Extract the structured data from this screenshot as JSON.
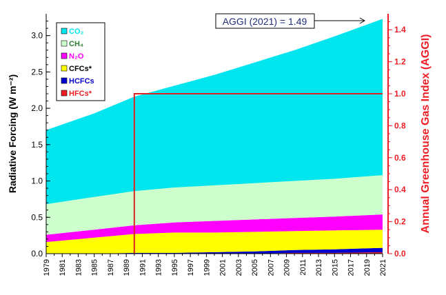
{
  "chart_data": {
    "type": "area",
    "stacked": true,
    "ylabel_left": "Radiative Forcing (W m⁻²)",
    "ylabel_right": "Annual Greenhouse Gas Index (AGGI)",
    "ylim_left": [
      0,
      3.3
    ],
    "ylim_right": [
      0,
      1.5
    ],
    "yticks_left": [
      "0.0",
      "0.5",
      "1.0",
      "1.5",
      "2.0",
      "2.5",
      "3.0"
    ],
    "yticks_right": [
      "0.0",
      "0.2",
      "0.4",
      "0.6",
      "0.8",
      "1.0",
      "1.2",
      "1.4"
    ],
    "x_tick_labels": [
      "1979",
      "1981",
      "1983",
      "1985",
      "1987",
      "1989",
      "1991",
      "1993",
      "1995",
      "1997",
      "1999",
      "2001",
      "2003",
      "2005",
      "2007",
      "2009",
      "2011",
      "2013",
      "2015",
      "2017",
      "2019",
      "2021"
    ],
    "xlim": [
      1979,
      2021
    ],
    "x": [
      1979,
      1985,
      1990,
      1995,
      2000,
      2005,
      2010,
      2015,
      2021
    ],
    "series": [
      {
        "name": "HFCs*",
        "color": "#ee1c24",
        "values": [
          0.0,
          0.0,
          0.0,
          0.0,
          0.0,
          0.0,
          0.01,
          0.01,
          0.02
        ]
      },
      {
        "name": "HCFCs",
        "color": "#0000cc",
        "values": [
          0.0,
          0.0,
          0.01,
          0.01,
          0.02,
          0.03,
          0.04,
          0.05,
          0.06
        ]
      },
      {
        "name": "CFCs*",
        "color": "#ffff00",
        "values": [
          0.16,
          0.22,
          0.26,
          0.28,
          0.27,
          0.27,
          0.26,
          0.26,
          0.25
        ]
      },
      {
        "name": "N₂O",
        "color": "#ff00ff",
        "values": [
          0.1,
          0.11,
          0.12,
          0.14,
          0.16,
          0.17,
          0.18,
          0.19,
          0.21
        ]
      },
      {
        "name": "CH₄",
        "color": "#ccffcc",
        "values": [
          0.42,
          0.45,
          0.47,
          0.48,
          0.49,
          0.5,
          0.51,
          0.52,
          0.54
        ]
      },
      {
        "name": "CO₂",
        "color": "#00e5ee",
        "values": [
          1.02,
          1.15,
          1.3,
          1.4,
          1.52,
          1.66,
          1.8,
          1.96,
          2.15
        ]
      }
    ],
    "aggi_reference": {
      "start_year": 1990,
      "value": 1.0,
      "color": "#dd2222"
    },
    "annotation": "AGGI (2021) = 1.49",
    "legend_position": "top-left"
  }
}
